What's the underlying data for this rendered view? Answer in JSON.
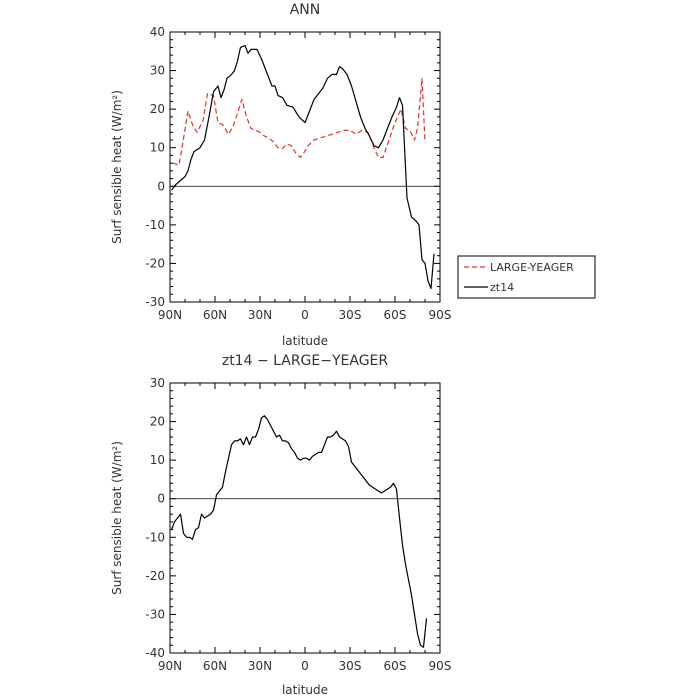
{
  "chart_data": [
    {
      "type": "line",
      "title": "ANN",
      "xlabel": "latitude",
      "ylabel": "Surf sensible heat (W/m²)",
      "xlim": [
        90,
        -90
      ],
      "ylim": [
        -30,
        40
      ],
      "xticks": [
        90,
        60,
        30,
        0,
        -30,
        -60,
        -90
      ],
      "xtick_labels": [
        "90N",
        "60N",
        "30N",
        "0",
        "30S",
        "60S",
        "90S"
      ],
      "yticks": [
        -30,
        -20,
        -10,
        0,
        10,
        20,
        30,
        40
      ],
      "ytick_labels": [
        "-30",
        "-20",
        "-10",
        "0",
        "10",
        "20",
        "30",
        "40"
      ],
      "legend_position": "right-outside",
      "series": [
        {
          "name": "LARGE-YEAGER",
          "color": "#e8302b",
          "dash": "dashed",
          "x": [
            88,
            84,
            82,
            78,
            75,
            72,
            68,
            65,
            61,
            58,
            55,
            51,
            48,
            45,
            42,
            39,
            36,
            33,
            30,
            27,
            24,
            21,
            18,
            15,
            12,
            9,
            6,
            3,
            1,
            -2,
            -6,
            -10,
            -14,
            -18,
            -22,
            -26,
            -30,
            -34,
            -38,
            -42,
            -46,
            -49,
            -52,
            -56,
            -60,
            -64,
            -67,
            -70,
            -73,
            -75,
            -78,
            -80
          ],
          "y": [
            6,
            5.5,
            10,
            19.5,
            16,
            14,
            17,
            24,
            23.5,
            16.5,
            16,
            13.5,
            15.5,
            19,
            22.5,
            18,
            15,
            14.5,
            14,
            13,
            12.5,
            11.5,
            10,
            9.8,
            11,
            10.5,
            8.5,
            7.5,
            8.5,
            10.5,
            12,
            12.5,
            13,
            13.5,
            14,
            14.5,
            14.5,
            13.5,
            14.5,
            14,
            10,
            7.5,
            7.5,
            12,
            16.5,
            20,
            15,
            14.5,
            12,
            15,
            28,
            11.5
          ]
        },
        {
          "name": "zt14",
          "color": "#000000",
          "dash": "solid",
          "x": [
            89,
            86,
            83,
            80,
            78,
            76,
            74,
            72,
            70,
            67,
            64,
            61,
            58,
            56,
            54,
            52,
            49,
            47,
            45,
            43,
            40,
            38,
            36,
            34,
            32,
            29,
            26,
            24,
            22,
            20,
            18,
            15,
            12,
            8,
            4,
            0,
            -3,
            -6,
            -9,
            -12,
            -15,
            -18,
            -21,
            -23,
            -25,
            -28,
            -31,
            -34,
            -37,
            -40,
            -43,
            -46,
            -49,
            -52,
            -55,
            -58,
            -61,
            -63,
            -65,
            -68,
            -71,
            -74,
            -76,
            -78,
            -80,
            -82,
            -84,
            -86
          ],
          "y": [
            -1,
            0.5,
            1.5,
            2.5,
            4,
            7,
            9,
            9.5,
            10,
            12,
            18,
            24.5,
            26,
            23,
            25,
            28,
            29,
            30,
            32.5,
            36,
            36.5,
            34.5,
            35.5,
            35.5,
            35.5,
            33,
            30,
            28,
            26,
            26,
            23.5,
            23,
            21,
            20.5,
            18,
            16.5,
            19.5,
            22.5,
            24,
            25.5,
            28,
            29,
            29,
            31,
            30.5,
            29,
            26,
            22,
            18,
            15,
            13,
            10.5,
            10,
            12,
            15,
            18,
            20.5,
            23,
            21,
            -3,
            -8,
            -9,
            -10,
            -19,
            -20,
            -24.5,
            -26.5,
            -17.5
          ]
        }
      ]
    },
    {
      "type": "line",
      "title": "zt14 − LARGE−YEAGER",
      "xlabel": "latitude",
      "ylabel": "Surf sensible heat (W/m²)",
      "xlim": [
        90,
        -90
      ],
      "ylim": [
        -40,
        30
      ],
      "xticks": [
        90,
        60,
        30,
        0,
        -30,
        -60,
        -90
      ],
      "xtick_labels": [
        "90N",
        "60N",
        "30N",
        "0",
        "30S",
        "60S",
        "90S"
      ],
      "yticks": [
        -40,
        -30,
        -20,
        -10,
        0,
        10,
        20,
        30
      ],
      "ytick_labels": [
        "-40",
        "-30",
        "-20",
        "-10",
        "0",
        "10",
        "20",
        "30"
      ],
      "series": [
        {
          "name": "zt14 − LARGE−YEAGER",
          "color": "#000000",
          "dash": "solid",
          "x": [
            89,
            87,
            85,
            83,
            81,
            79,
            77,
            75,
            73,
            71,
            69,
            67,
            65,
            63,
            61,
            59,
            57,
            55,
            53,
            51,
            49,
            47,
            45,
            43,
            41,
            39,
            37,
            35,
            33,
            31,
            29,
            27,
            25,
            23,
            21,
            19,
            17,
            15,
            13,
            11,
            9,
            7,
            5,
            3,
            1,
            -1,
            -3,
            -5,
            -7,
            -9,
            -11,
            -13,
            -15,
            -17,
            -19,
            -21,
            -23,
            -25,
            -27,
            -29,
            -31,
            -33,
            -35,
            -37,
            -39,
            -41,
            -43,
            -45,
            -47,
            -49,
            -51,
            -53,
            -55,
            -57,
            -59,
            -61,
            -63,
            -65,
            -67,
            -69,
            -71,
            -73,
            -75,
            -77,
            -79,
            -81
          ],
          "y": [
            -8,
            -6,
            -5,
            -4,
            -9,
            -10,
            -10,
            -10.5,
            -8,
            -7.5,
            -4,
            -5,
            -4.5,
            -4,
            -3,
            1,
            2,
            3,
            7,
            10.5,
            14,
            15,
            15,
            15.5,
            14,
            16,
            14,
            16,
            16,
            18,
            21,
            21.5,
            20.5,
            19,
            17.5,
            16,
            16.5,
            15,
            15,
            14.5,
            13,
            12,
            10.5,
            10,
            10.5,
            10.5,
            10,
            11,
            11.5,
            12,
            12,
            14,
            16,
            16,
            16.5,
            17.5,
            16,
            15.5,
            15,
            13.5,
            9.5,
            8.5,
            7.5,
            6.5,
            5.5,
            4.5,
            3.5,
            3,
            2.5,
            2,
            1.5,
            2,
            2.5,
            3,
            4,
            2.5,
            -5,
            -12,
            -17,
            -21,
            -25,
            -30,
            -35,
            -38,
            -38.5,
            -31
          ]
        }
      ]
    }
  ]
}
